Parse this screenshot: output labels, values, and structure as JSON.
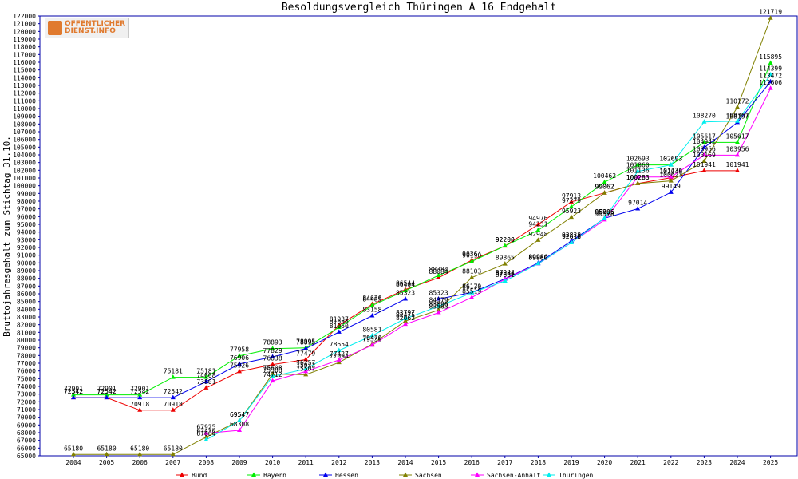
{
  "logo": {
    "line1": "OFFENTLICHER",
    "line2": "DIENST.INFO"
  },
  "chart_data": {
    "type": "line",
    "title": "Besoldungsvergleich Thüringen A 16 Endgehalt",
    "ylabel": "Bruttojahresgehalt zum Stichtag 31.10.",
    "xlabel": "",
    "x": [
      2004,
      2005,
      2006,
      2007,
      2008,
      2009,
      2010,
      2011,
      2012,
      2013,
      2014,
      2015,
      2016,
      2017,
      2018,
      2019,
      2020,
      2021,
      2022,
      2023,
      2024,
      2025
    ],
    "ylim": [
      65000,
      122000
    ],
    "ystep": 1000,
    "grid": false,
    "legend": "bottom",
    "series": [
      {
        "name": "Bund",
        "color": "#ee0000",
        "values": [
          72542,
          72542,
          70918,
          70918,
          73801,
          75926,
          76838,
          77479,
          81937,
          84636,
          86544,
          88084,
          90364,
          92200,
          94976,
          97913,
          99062,
          100283,
          101043,
          101941,
          101941,
          null
        ]
      },
      {
        "name": "Bayern",
        "color": "#00ee00",
        "values": [
          72901,
          72901,
          72901,
          75181,
          75181,
          77958,
          78893,
          78995,
          81658,
          84485,
          86404,
          88384,
          90190,
          92206,
          94231,
          97279,
          100462,
          102693,
          102693,
          105617,
          105617,
          115895
        ]
      },
      {
        "name": "Hessen",
        "color": "#0000ee",
        "values": [
          72542,
          72542,
          72542,
          72542,
          74608,
          76906,
          77829,
          78895,
          81050,
          83158,
          85323,
          85323,
          86170,
          87944,
          89986,
          92838,
          95785,
          97014,
          99149,
          104942,
          108197,
          113472
        ]
      },
      {
        "name": "Sachsen",
        "color": "#808000",
        "values": [
          65180,
          65180,
          65180,
          65180,
          67436,
          69547,
          75608,
          75507,
          77094,
          79470,
          82475,
          83896,
          88103,
          89865,
          92948,
          95923,
          99062,
          100283,
          100623,
          103169,
          110172,
          121719
        ]
      },
      {
        "name": "Sachsen-Anhalt",
        "color": "#ff00ff",
        "values": [
          null,
          null,
          null,
          null,
          67925,
          68308,
          74712,
          75932,
          77427,
          79336,
          82062,
          83563,
          85519,
          87884,
          89880,
          92618,
          95578,
          101136,
          101136,
          103956,
          103956,
          112606
        ]
      },
      {
        "name": "Thüringen",
        "color": "#00eeee",
        "values": [
          null,
          null,
          null,
          null,
          67064,
          69547,
          75308,
          76257,
          78654,
          80581,
          82797,
          84379,
          86131,
          87651,
          89900,
          92616,
          95806,
          101860,
          102693,
          108270,
          108367,
          114399
        ]
      }
    ]
  }
}
